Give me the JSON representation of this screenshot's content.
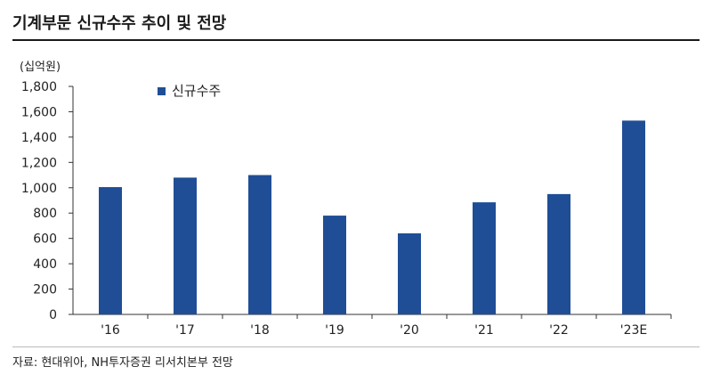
{
  "header": {
    "title": "기계부문 신규수주 추이 및 전망"
  },
  "chart_data": {
    "type": "bar",
    "unit_label": "(십억원)",
    "categories": [
      "'16",
      "'17",
      "'18",
      "'19",
      "'20",
      "'21",
      "'22",
      "'23E"
    ],
    "series": [
      {
        "name": "신규수주",
        "values": [
          1005,
          1080,
          1100,
          780,
          640,
          885,
          950,
          1530
        ]
      }
    ],
    "yticks": [
      "0",
      "200",
      "400",
      "600",
      "800",
      "1,000",
      "1,200",
      "1,400",
      "1,600",
      "1,800"
    ],
    "ylim": [
      0,
      1800
    ],
    "legend_position": "top-left",
    "bar_color": "#1f4e96"
  },
  "footer": {
    "source": "자료: 현대위아, NH투자증권 리서치본부 전망"
  }
}
